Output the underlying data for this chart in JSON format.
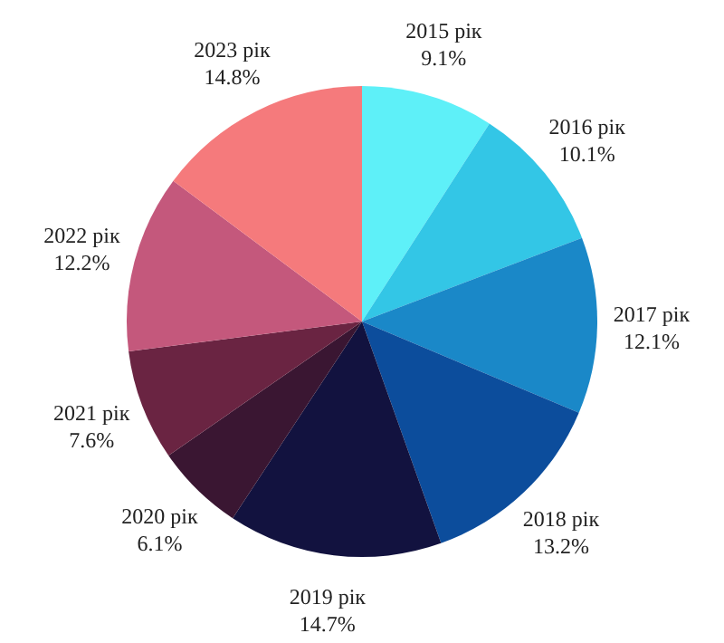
{
  "chart_data": {
    "type": "pie",
    "categories": [
      "2015 рік",
      "2016 рік",
      "2017 рік",
      "2018 рік",
      "2019 рік",
      "2020 рік",
      "2021 рік",
      "2022 рік",
      "2023 рік"
    ],
    "values": [
      9.1,
      10.1,
      12.1,
      13.2,
      14.7,
      6.1,
      7.6,
      12.2,
      14.8
    ],
    "value_labels": [
      "9.1%",
      "10.1%",
      "12.1%",
      "13.2%",
      "14.7%",
      "6.1%",
      "7.6%",
      "12.2%",
      "14.8%"
    ],
    "colors": [
      "#5ef0f8",
      "#33c6e6",
      "#1a88c8",
      "#0c4d9c",
      "#12123f",
      "#3a1632",
      "#6a2442",
      "#c4587c",
      "#f57a7c"
    ]
  }
}
